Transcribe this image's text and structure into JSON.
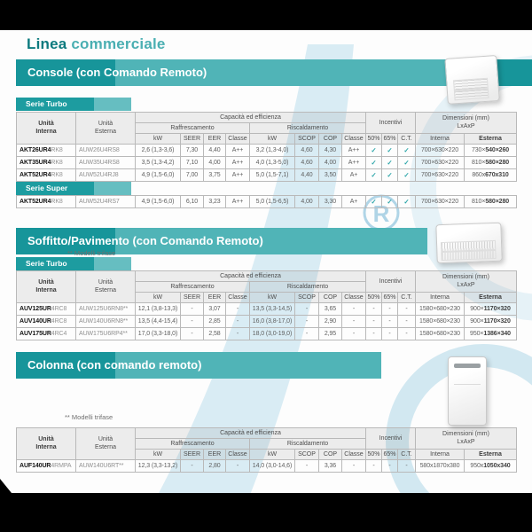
{
  "page": {
    "title_bold": "Linea",
    "title_light": "commerciale"
  },
  "sections": {
    "console": {
      "banner": "Console (con Comando Remoto)"
    },
    "soffitto": {
      "banner": "Soffitto/Pavimento (con Comando Remoto)"
    },
    "colonna": {
      "banner": "Colonna (con comando remoto)"
    }
  },
  "labels": {
    "serie_turbo": "Serie Turbo",
    "serie_super": "Serie Super",
    "modelli_trifase": "** Modelli trifase",
    "check": "✓",
    "dash": "-"
  },
  "table_headers": {
    "unita_interna": "Unità\nInterna",
    "unita_esterna": "Unità\nEsterna",
    "capacita": "Capacità ed efficienza",
    "raffrescamento": "Raffrescamento",
    "riscaldamento": "Riscaldamento",
    "incentivi": "Incentivi",
    "dimensioni": "Dimensioni (mm)\nLxAxP",
    "kw": "kW",
    "seer": "SEER",
    "eer": "EER",
    "classe": "Classe",
    "scop": "SCOP",
    "cop": "COP",
    "p50": "50%",
    "p65": "65%",
    "ct": "C.T.",
    "interna": "Interna",
    "esterna": "Esterna"
  },
  "tables": {
    "console_turbo": {
      "rows": [
        {
          "model_bold": "AKT26UR4",
          "model_gray": "RK8",
          "esterna": "AUW26U4RS8",
          "raff_kw": "2,6 (1,3-3,6)",
          "seer": "7,30",
          "eer": "4,40",
          "raff_classe": "A++",
          "risc_kw": "3,2 (1,3-4,0)",
          "scop": "4,60",
          "cop": "4,30",
          "risc_classe": "A++",
          "inc50": "✓",
          "inc65": "✓",
          "inc_ct": "✓",
          "dim_int": "700×630×220",
          "dim_est_pre": "730×",
          "dim_est_bold": "540×260"
        },
        {
          "model_bold": "AKT35UR4",
          "model_gray": "RK8",
          "esterna": "AUW35U4RS8",
          "raff_kw": "3,5 (1,3-4,2)",
          "seer": "7,10",
          "eer": "4,00",
          "raff_classe": "A++",
          "risc_kw": "4,0 (1,3-5,0)",
          "scop": "4,60",
          "cop": "4,00",
          "risc_classe": "A++",
          "inc50": "✓",
          "inc65": "✓",
          "inc_ct": "✓",
          "dim_int": "700×630×220",
          "dim_est_pre": "810×",
          "dim_est_bold": "580×280"
        },
        {
          "model_bold": "AKT52UR4",
          "model_gray": "RK8",
          "esterna": "AUW52U4RJ8",
          "raff_kw": "4,9 (1,5-6,0)",
          "seer": "7,00",
          "eer": "3,75",
          "raff_classe": "A++",
          "risc_kw": "5,0 (1,5-7,1)",
          "scop": "4,40",
          "cop": "3,50",
          "risc_classe": "A+",
          "inc50": "✓",
          "inc65": "✓",
          "inc_ct": "✓",
          "dim_int": "700×630×220",
          "dim_est_pre": "860x",
          "dim_est_bold": "670x310"
        }
      ]
    },
    "console_super": {
      "rows": [
        {
          "model_bold": "AKT52UR4",
          "model_gray": "RK8",
          "esterna": "AUW52U4RS7",
          "raff_kw": "4,9 (1,5-6,0)",
          "seer": "6,10",
          "eer": "3,23",
          "raff_classe": "A++",
          "risc_kw": "5,0 (1,5-6,5)",
          "scop": "4,00",
          "cop": "3,30",
          "risc_classe": "A+",
          "inc50": "✓",
          "inc65": "✓",
          "inc_ct": "✓",
          "dim_int": "700×630×220",
          "dim_est_pre": "810×",
          "dim_est_bold": "580×280"
        }
      ]
    },
    "soffitto_turbo": {
      "rows": [
        {
          "model_bold": "AUV125UR",
          "model_gray": "4RC8",
          "esterna": "AUW125U6RN8**",
          "raff_kw": "12,1 (3,8-13,3)",
          "seer": "-",
          "eer": "3,07",
          "raff_classe": "-",
          "risc_kw": "13,5 (3,3-14,5)",
          "scop": "-",
          "cop": "3,65",
          "risc_classe": "-",
          "inc50": "-",
          "inc65": "-",
          "inc_ct": "-",
          "dim_int": "1580×680×230",
          "dim_est_pre": "900×",
          "dim_est_bold": "1170×320"
        },
        {
          "model_bold": "AUV140UR",
          "model_gray": "4RC8",
          "esterna": "AUW140U6RN8**",
          "raff_kw": "13,5 (4,4-15,4)",
          "seer": "-",
          "eer": "2,85",
          "raff_classe": "-",
          "risc_kw": "16,0 (3,8-17,0)",
          "scop": "-",
          "cop": "2,90",
          "risc_classe": "-",
          "inc50": "-",
          "inc65": "-",
          "inc_ct": "-",
          "dim_int": "1580×680×230",
          "dim_est_pre": "900×",
          "dim_est_bold": "1170×320"
        },
        {
          "model_bold": "AUV175UR",
          "model_gray": "4RC4",
          "esterna": "AUW175U6RP4**",
          "raff_kw": "17,0 (3,3-18,0)",
          "seer": "-",
          "eer": "2,58",
          "raff_classe": "-",
          "risc_kw": "18,0 (3,0-19,0)",
          "scop": "-",
          "cop": "2,95",
          "risc_classe": "-",
          "inc50": "-",
          "inc65": "-",
          "inc_ct": "-",
          "dim_int": "1580×680×230",
          "dim_est_pre": "950×",
          "dim_est_bold": "1386×340"
        }
      ]
    },
    "colonna": {
      "rows": [
        {
          "model_bold": "AUF140UR",
          "model_gray": "4RMPA",
          "esterna": "AUW140U6RT**",
          "raff_kw": "12,3 (3,3-13,2)",
          "seer": "-",
          "eer": "2,80",
          "raff_classe": "-",
          "risc_kw": "14,0 (3,0-14,6)",
          "scop": "-",
          "cop": "3,36",
          "risc_classe": "-",
          "inc50": "-",
          "inc65": "-",
          "inc_ct": "-",
          "dim_int": "580x1870x380",
          "dim_est_pre": "950x",
          "dim_est_bold": "1050x340"
        }
      ]
    }
  },
  "icons": {
    "watermark": "water-drop-registered-logo",
    "console_image": "console-indoor-unit-photo",
    "soffitto_image": "floor-ceiling-unit-photo",
    "colonna_image": "column-unit-photo"
  },
  "colors": {
    "teal_dark": "#17959a",
    "teal_light": "#50b4b7",
    "title_dark": "#0c7a7e",
    "title_light": "#4aafb2",
    "check": "#2ba5a8",
    "watermark_blue": "#a8d4e6"
  }
}
